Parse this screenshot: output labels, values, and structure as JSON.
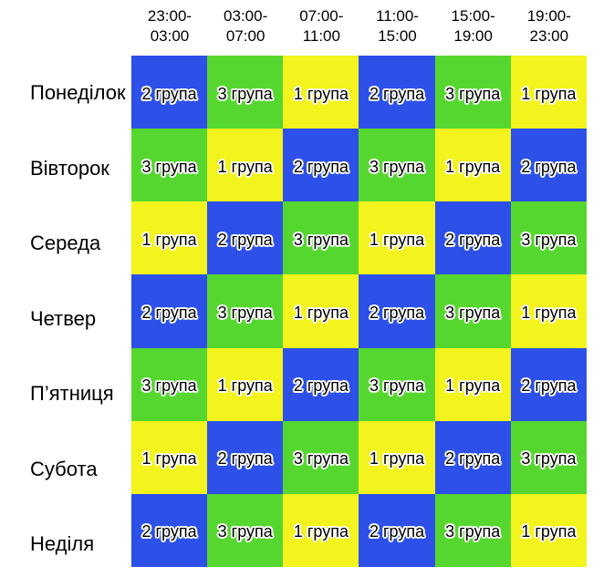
{
  "chart_data": {
    "type": "heatmap",
    "title": "",
    "x_labels": [
      "23:00-\n03:00",
      "03:00-\n07:00",
      "07:00-\n11:00",
      "11:00-\n15:00",
      "15:00-\n19:00",
      "19:00-\n23:00"
    ],
    "y_labels": [
      "Понеділок",
      "Вівторок",
      "Середа",
      "Четвер",
      "П’ятниця",
      "Субота",
      "Неділя"
    ],
    "values": [
      [
        2,
        3,
        1,
        2,
        3,
        1
      ],
      [
        3,
        1,
        2,
        3,
        1,
        2
      ],
      [
        1,
        2,
        3,
        1,
        2,
        3
      ],
      [
        2,
        3,
        1,
        2,
        3,
        1
      ],
      [
        3,
        1,
        2,
        3,
        1,
        2
      ],
      [
        1,
        2,
        3,
        1,
        2,
        3
      ],
      [
        2,
        3,
        1,
        2,
        3,
        1
      ]
    ],
    "cell_text": [
      [
        "2 група",
        "3 група",
        "1 група",
        "2 група",
        "3 група",
        "1 група"
      ],
      [
        "3 група",
        "1 група",
        "2 група",
        "3 група",
        "1 група",
        "2 група"
      ],
      [
        "1 група",
        "2 група",
        "3 група",
        "1 група",
        "2 група",
        "3 група"
      ],
      [
        "2 група",
        "3 група",
        "1 група",
        "2 група",
        "3 група",
        "1 група"
      ],
      [
        "3 група",
        "1 група",
        "2 група",
        "3 група",
        "1 група",
        "2 група"
      ],
      [
        "1 група",
        "2 група",
        "3 група",
        "1 група",
        "2 група",
        "3 група"
      ],
      [
        "2 група",
        "3 група",
        "1 група",
        "2 група",
        "3 група",
        "1 група"
      ]
    ],
    "color_map": {
      "1": "#F3F31D",
      "2": "#2D50E8",
      "3": "#56D72F"
    },
    "legend_position": "none",
    "grid": false
  },
  "colors": {
    "group_1_yellow": "#F3F31D",
    "group_2_blue": "#2D50E8",
    "group_3_green": "#56D72F",
    "cell_text": "#000000",
    "cell_text_outline": "#FFFFFF",
    "header_text": "#000000",
    "day_label_text": "#000000",
    "background": "#FFFFFF"
  }
}
